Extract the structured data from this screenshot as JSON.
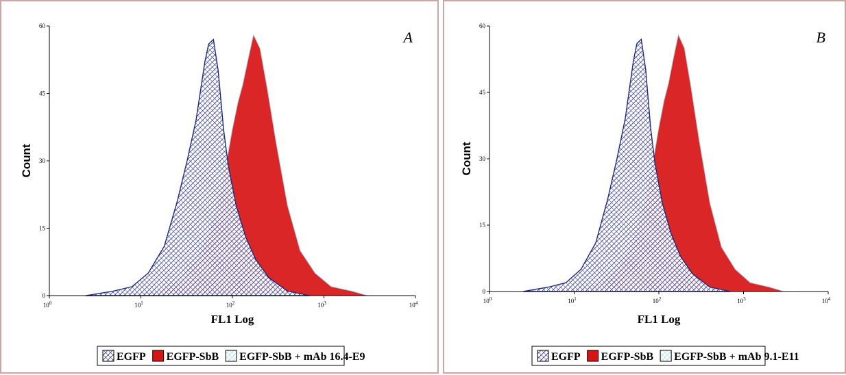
{
  "chart_data": [
    {
      "type": "area",
      "panel_letter": "A",
      "ylabel": "Count",
      "xlabel": "FL1 Log",
      "y_ticks": [
        "0",
        "15",
        "30",
        "45",
        "60"
      ],
      "x_ticks": [
        "10^0",
        "10^1",
        "10^2",
        "10^3",
        "10^4"
      ],
      "ylim": [
        0,
        60
      ],
      "xlim": [
        1,
        10000
      ],
      "x_scale": "log",
      "grid": false,
      "legend_position": "bottom",
      "series": [
        {
          "name": "EGFP",
          "fill": "hatch",
          "color": "#1f2a80",
          "x": [
            2.5,
            5,
            8,
            12,
            18,
            25,
            32,
            40,
            50,
            55,
            62,
            70,
            80,
            90,
            110,
            140,
            180,
            250,
            400,
            700
          ],
          "y": [
            0,
            1,
            2,
            5,
            11,
            21,
            30,
            39,
            52,
            56,
            57,
            50,
            37,
            29,
            20,
            13,
            8,
            4,
            1,
            0
          ]
        },
        {
          "name": "EGFP-SbB",
          "fill": "solid",
          "color": "#d71414",
          "x": [
            3,
            8,
            15,
            25,
            40,
            55,
            70,
            85,
            100,
            115,
            130,
            150,
            170,
            200,
            240,
            300,
            400,
            550,
            800,
            1200,
            2000,
            3000
          ],
          "y": [
            0,
            0.5,
            1,
            3,
            8,
            14,
            21,
            29,
            37,
            43,
            47,
            53,
            58,
            55,
            46,
            34,
            20,
            10,
            5,
            2,
            1,
            0
          ]
        },
        {
          "name": "EGFP-SbB + mAb 16.4-E9",
          "fill": "hatch",
          "color": "#a8d6e8",
          "x": [
            3,
            8,
            15,
            25,
            40,
            55,
            70,
            85,
            100,
            115,
            130,
            150,
            170,
            200,
            240,
            300,
            400,
            550,
            800,
            1200,
            2000,
            3000
          ],
          "y": [
            0,
            0.5,
            1,
            3,
            8,
            14,
            21,
            29,
            37,
            43,
            47,
            53,
            58,
            55,
            46,
            34,
            20,
            10,
            5,
            2,
            1,
            0
          ]
        }
      ]
    },
    {
      "type": "area",
      "panel_letter": "B",
      "ylabel": "Count",
      "xlabel": "FL1 Log",
      "y_ticks": [
        "0",
        "15",
        "30",
        "45",
        "60"
      ],
      "x_ticks": [
        "10^0",
        "10^1",
        "10^2",
        "10^3",
        "10^4"
      ],
      "ylim": [
        0,
        60
      ],
      "xlim": [
        1,
        10000
      ],
      "x_scale": "log",
      "grid": false,
      "legend_position": "bottom",
      "series": [
        {
          "name": "EGFP",
          "fill": "hatch",
          "color": "#1f2a80",
          "x": [
            2.5,
            5,
            8,
            12,
            18,
            25,
            32,
            40,
            50,
            55,
            62,
            70,
            80,
            90,
            110,
            140,
            180,
            250,
            400,
            700
          ],
          "y": [
            0,
            1,
            2,
            5,
            11,
            21,
            30,
            39,
            52,
            56,
            57,
            50,
            37,
            29,
            20,
            13,
            8,
            4,
            1,
            0
          ]
        },
        {
          "name": "EGFP-SbB",
          "fill": "solid",
          "color": "#d71414",
          "x": [
            3,
            8,
            15,
            25,
            40,
            55,
            70,
            85,
            100,
            115,
            130,
            150,
            170,
            200,
            240,
            300,
            400,
            550,
            800,
            1200,
            2000,
            3000
          ],
          "y": [
            0,
            0.5,
            1,
            3,
            8,
            14,
            21,
            29,
            37,
            43,
            47,
            53,
            58,
            55,
            46,
            34,
            20,
            10,
            5,
            2,
            1,
            0
          ]
        },
        {
          "name": "EGFP-SbB + mAb 9.1-E11",
          "fill": "hatch",
          "color": "#a8d6e8",
          "x": [
            3,
            8,
            15,
            25,
            40,
            55,
            70,
            85,
            100,
            115,
            130,
            150,
            170,
            200,
            240,
            300,
            400,
            550,
            800,
            1200,
            2000,
            3000
          ],
          "y": [
            0,
            0.5,
            1,
            3,
            8,
            14,
            21,
            29,
            37,
            43,
            47,
            53,
            58,
            55,
            46,
            34,
            20,
            10,
            5,
            2,
            1,
            0
          ]
        }
      ]
    }
  ]
}
